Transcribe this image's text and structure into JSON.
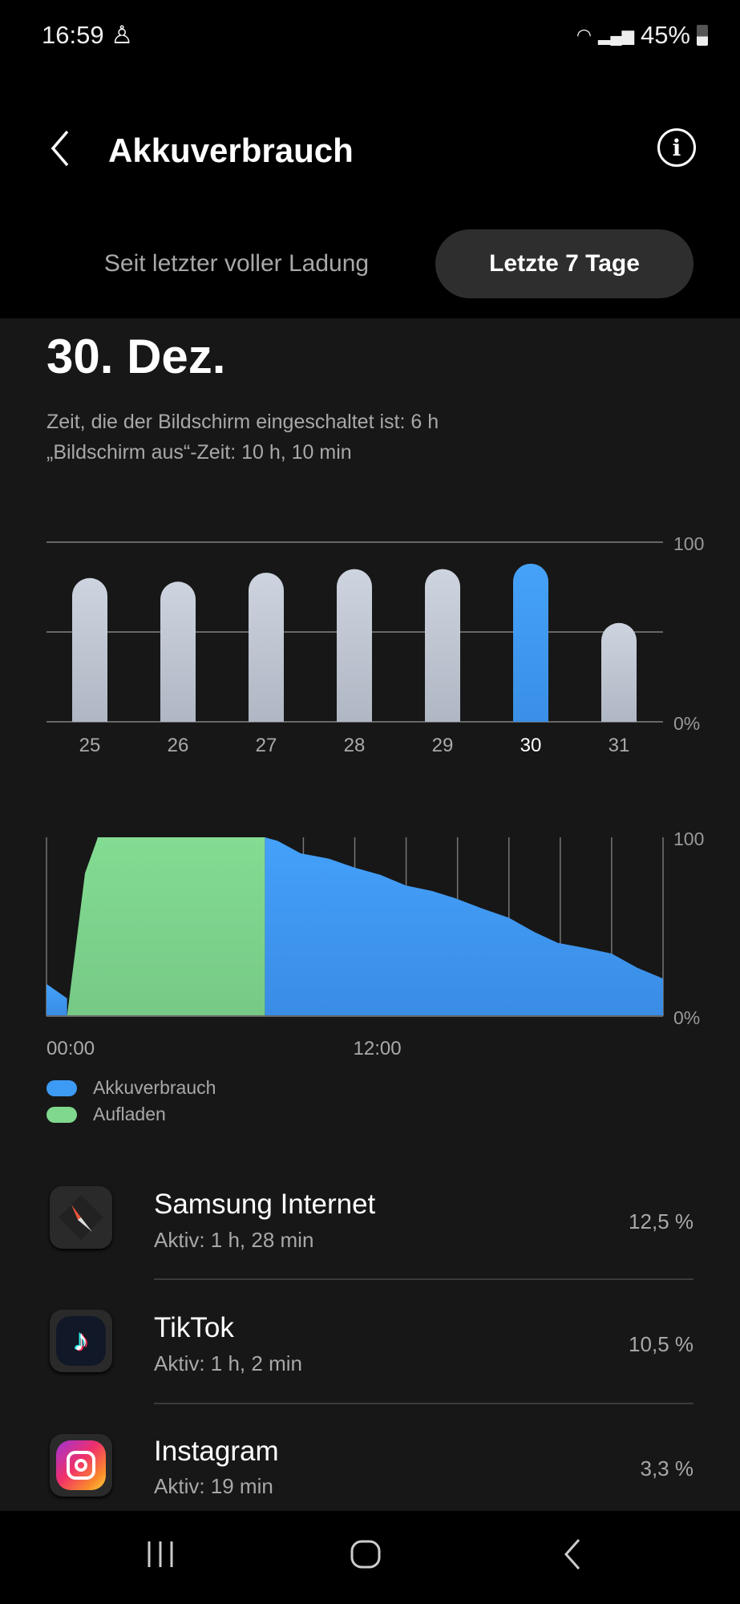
{
  "status": {
    "time": "16:59",
    "battery": "45%",
    "battery_level": 45
  },
  "header": {
    "title": "Akkuverbrauch"
  },
  "tabs": [
    {
      "label": "Seit letzter voller Ladung",
      "selected": false
    },
    {
      "label": "Letzte 7 Tage",
      "selected": true
    }
  ],
  "day": {
    "date": "30. Dez.",
    "screen_on": "Zeit, die der Bildschirm eingeschaltet ist: 6 h",
    "screen_off": "„Bildschirm aus“-Zeit: 10 h, 10 min"
  },
  "chart_data": [
    {
      "type": "bar",
      "categories": [
        "25",
        "26",
        "27",
        "28",
        "29",
        "30",
        "31"
      ],
      "values": [
        80,
        78,
        83,
        85,
        85,
        88,
        55
      ],
      "selected": "30",
      "ylim": [
        0,
        100
      ],
      "y_tick_labels": [
        "0%",
        "100"
      ],
      "grid": true,
      "colors": {
        "bar": "#c3cad6",
        "selected": "#3d9bf5"
      }
    },
    {
      "type": "area",
      "xlim": [
        0,
        24
      ],
      "ylim": [
        0,
        100
      ],
      "x_tick_labels": [
        "00:00",
        "12:00"
      ],
      "y_tick_labels": [
        "0%",
        "100"
      ],
      "grid": true,
      "legend": "bottom-left",
      "series": [
        {
          "name": "Akkuverbrauch",
          "color": "#3d9bf5",
          "segments": [
            [
              [
                0,
                18
              ],
              [
                0.8,
                10
              ]
            ],
            [
              [
                8.5,
                100
              ],
              [
                9,
                98
              ],
              [
                9.9,
                91
              ],
              [
                11,
                88
              ],
              [
                12,
                83
              ],
              [
                13,
                79
              ],
              [
                14,
                73
              ],
              [
                15,
                70
              ],
              [
                15.9,
                66
              ],
              [
                17,
                60
              ],
              [
                18,
                55
              ],
              [
                19,
                47
              ],
              [
                19.9,
                41
              ],
              [
                21,
                38
              ],
              [
                22,
                35
              ],
              [
                23,
                27
              ],
              [
                24,
                21
              ]
            ]
          ]
        },
        {
          "name": "Aufladen",
          "color": "#80d78e",
          "segments": [
            [
              [
                0.8,
                0
              ],
              [
                1.5,
                80
              ],
              [
                2,
                100
              ],
              [
                8.5,
                100
              ]
            ]
          ]
        }
      ]
    }
  ],
  "apps": [
    {
      "name": "Samsung Internet",
      "active": "Aktiv: 1 h, 28 min",
      "percent": "12,5 %",
      "icon": "compass-icon"
    },
    {
      "name": "TikTok",
      "active": "Aktiv: 1 h, 2 min",
      "percent": "10,5 %",
      "icon": "tiktok-icon"
    },
    {
      "name": "Instagram",
      "active": "Aktiv: 19 min",
      "percent": "3,3 %",
      "icon": "instagram-icon"
    }
  ]
}
